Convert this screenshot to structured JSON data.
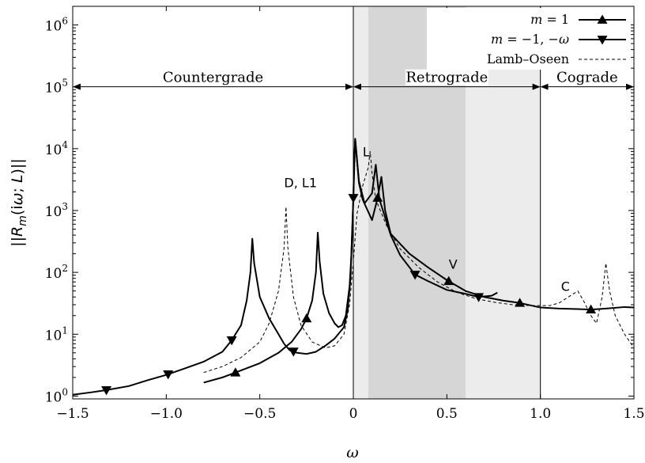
{
  "chart_data": {
    "type": "line",
    "title": "",
    "xlabel": "ω",
    "ylabel": "||R_m(iω; L)||",
    "xlim": [
      -1.5,
      1.5
    ],
    "ylim": [
      0.9,
      2000000
    ],
    "yscale": "log",
    "grid": false,
    "legend_position": "top-right",
    "x_tick_labels": [
      "−1.5",
      "−1.0",
      "−0.5",
      "0",
      "0.5",
      "1.0",
      "1.5"
    ],
    "x_ticks": [
      -1.5,
      -1.0,
      -0.5,
      0,
      0.5,
      1.0,
      1.5
    ],
    "y_tick_labels": [
      {
        "base": "10",
        "exp": "0",
        "value": 1
      },
      {
        "base": "10",
        "exp": "1",
        "value": 10
      },
      {
        "base": "10",
        "exp": "2",
        "value": 100
      },
      {
        "base": "10",
        "exp": "3",
        "value": 1000
      },
      {
        "base": "10",
        "exp": "4",
        "value": 10000
      },
      {
        "base": "10",
        "exp": "5",
        "value": 100000
      },
      {
        "base": "10",
        "exp": "6",
        "value": 1000000
      }
    ],
    "regions": [
      {
        "name": "Countergrade",
        "x": [
          -1.5,
          0
        ]
      },
      {
        "name": "Retrograde",
        "x": [
          0,
          1.0
        ]
      },
      {
        "name": "Cograde",
        "x": [
          1.0,
          1.5
        ]
      }
    ],
    "region_arrow_y": 100000,
    "shaded_bands": [
      {
        "x": [
          0,
          1.0
        ],
        "shade": "light",
        "color": "#ececec"
      },
      {
        "x": [
          0.08,
          0.6
        ],
        "shade": "dark",
        "color": "#d6d6d6"
      }
    ],
    "annotations": [
      {
        "text": "D, L1",
        "x": -0.37,
        "y": 2400
      },
      {
        "text": "L",
        "x": 0.05,
        "y": 7500
      },
      {
        "text": "V",
        "x": 0.51,
        "y": 115
      },
      {
        "text": "C",
        "x": 1.11,
        "y": 50
      }
    ],
    "series": [
      {
        "name": "m = 1",
        "legend_label": {
          "pre": "m",
          "post": " = 1"
        },
        "style": "solid",
        "marker": "triangle-up",
        "color": "#000000",
        "segments": [
          [
            [
              -0.8,
              1.65
            ],
            [
              -0.7,
              2.0
            ],
            [
              -0.63,
              2.4
            ],
            [
              -0.5,
              3.4
            ],
            [
              -0.4,
              5.0
            ],
            [
              -0.33,
              7.5
            ],
            [
              -0.28,
              12
            ],
            [
              -0.25,
              18
            ],
            [
              -0.22,
              35
            ],
            [
              -0.2,
              100
            ],
            [
              -0.19,
              440
            ],
            [
              -0.18,
              150
            ],
            [
              -0.16,
              45
            ],
            [
              -0.13,
              22
            ],
            [
              -0.1,
              15
            ],
            [
              -0.08,
              13
            ],
            [
              -0.06,
              14
            ],
            [
              -0.04,
              20
            ],
            [
              -0.02,
              60
            ],
            [
              -0.01,
              200
            ],
            [
              0.0,
              1500
            ],
            [
              0.005,
              5000
            ],
            [
              0.01,
              14500
            ],
            [
              0.03,
              2800
            ],
            [
              0.05,
              1500
            ],
            [
              0.1,
              700
            ],
            [
              0.13,
              1600
            ],
            [
              0.15,
              3500
            ],
            [
              0.17,
              1000
            ],
            [
              0.2,
              420
            ],
            [
              0.3,
              200
            ],
            [
              0.4,
              120
            ],
            [
              0.5,
              75
            ],
            [
              0.6,
              50
            ],
            [
              0.7,
              40
            ],
            [
              0.8,
              35
            ],
            [
              0.89,
              32
            ],
            [
              1.0,
              27
            ],
            [
              1.1,
              26
            ],
            [
              1.2,
              25.5
            ],
            [
              1.27,
              25
            ],
            [
              1.35,
              26
            ],
            [
              1.45,
              27.5
            ],
            [
              1.5,
              27
            ]
          ]
        ],
        "marker_x": [
          -0.63,
          -0.25,
          0.13,
          0.51,
          0.89,
          1.27
        ]
      },
      {
        "name": "m = −1, −ω",
        "legend_label": {
          "pre": "m",
          "post": " = −1, −",
          "post_italic": "ω"
        },
        "style": "solid",
        "marker": "triangle-down",
        "color": "#000000",
        "segments": [
          [
            [
              -1.5,
              1.05
            ],
            [
              -1.4,
              1.15
            ],
            [
              -1.32,
              1.25
            ],
            [
              -1.2,
              1.45
            ],
            [
              -1.1,
              1.8
            ],
            [
              -1.0,
              2.2
            ],
            [
              -0.9,
              2.8
            ],
            [
              -0.8,
              3.6
            ],
            [
              -0.7,
              5.2
            ],
            [
              -0.65,
              8.0
            ],
            [
              -0.6,
              14
            ],
            [
              -0.57,
              35
            ],
            [
              -0.55,
              100
            ],
            [
              -0.54,
              350
            ],
            [
              -0.53,
              140
            ],
            [
              -0.5,
              40
            ],
            [
              -0.45,
              18
            ],
            [
              -0.4,
              10
            ],
            [
              -0.37,
              7
            ],
            [
              -0.34,
              5.5
            ],
            [
              -0.3,
              5.0
            ],
            [
              -0.25,
              4.8
            ],
            [
              -0.2,
              5.2
            ],
            [
              -0.15,
              6.5
            ],
            [
              -0.1,
              8.5
            ],
            [
              -0.05,
              13
            ],
            [
              -0.03,
              25
            ],
            [
              -0.015,
              80
            ],
            [
              -0.005,
              600
            ],
            [
              0.0,
              1600
            ],
            [
              0.005,
              7000
            ],
            [
              0.01,
              14000
            ],
            [
              0.03,
              3000
            ],
            [
              0.06,
              1300
            ],
            [
              0.1,
              1900
            ],
            [
              0.12,
              5500
            ],
            [
              0.14,
              1500
            ],
            [
              0.2,
              400
            ],
            [
              0.25,
              190
            ],
            [
              0.33,
              92
            ],
            [
              0.4,
              72
            ],
            [
              0.5,
              52
            ],
            [
              0.6,
              45
            ],
            [
              0.67,
              40
            ],
            [
              0.74,
              42
            ],
            [
              0.77,
              47
            ]
          ]
        ],
        "marker_x": [
          -1.32,
          -0.99,
          -0.65,
          -0.32,
          0.0,
          0.33,
          0.67
        ]
      },
      {
        "name": "Lamb–Oseen",
        "legend_label": {
          "pre": "Lamb–Oseen"
        },
        "style": "dashed",
        "marker": "none",
        "color": "#000000",
        "segments": [
          [
            [
              -0.8,
              2.4
            ],
            [
              -0.7,
              3.0
            ],
            [
              -0.6,
              4.2
            ],
            [
              -0.5,
              7.5
            ],
            [
              -0.45,
              15
            ],
            [
              -0.4,
              50
            ],
            [
              -0.37,
              250
            ],
            [
              -0.36,
              1150
            ],
            [
              -0.35,
              250
            ],
            [
              -0.32,
              40
            ],
            [
              -0.28,
              14
            ],
            [
              -0.22,
              7.5
            ],
            [
              -0.15,
              6
            ],
            [
              -0.1,
              6.5
            ],
            [
              -0.05,
              10
            ],
            [
              -0.02,
              30
            ],
            [
              0.0,
              150
            ],
            [
              0.02,
              900
            ],
            [
              0.05,
              2500
            ],
            [
              0.08,
              5000
            ],
            [
              0.09,
              9000
            ],
            [
              0.1,
              4000
            ],
            [
              0.12,
              1500
            ],
            [
              0.18,
              550
            ],
            [
              0.25,
              240
            ],
            [
              0.35,
              120
            ],
            [
              0.45,
              70
            ],
            [
              0.55,
              48
            ],
            [
              0.65,
              38
            ],
            [
              0.75,
              33
            ],
            [
              0.85,
              30
            ],
            [
              0.95,
              29
            ],
            [
              1.05,
              29
            ],
            [
              1.1,
              32
            ],
            [
              1.15,
              40
            ],
            [
              1.2,
              50
            ],
            [
              1.23,
              35
            ],
            [
              1.27,
              20
            ],
            [
              1.3,
              15
            ],
            [
              1.33,
              40
            ],
            [
              1.35,
              140
            ],
            [
              1.37,
              50
            ],
            [
              1.4,
              20
            ],
            [
              1.45,
              10
            ],
            [
              1.5,
              6
            ]
          ]
        ],
        "marker_x": []
      }
    ]
  }
}
